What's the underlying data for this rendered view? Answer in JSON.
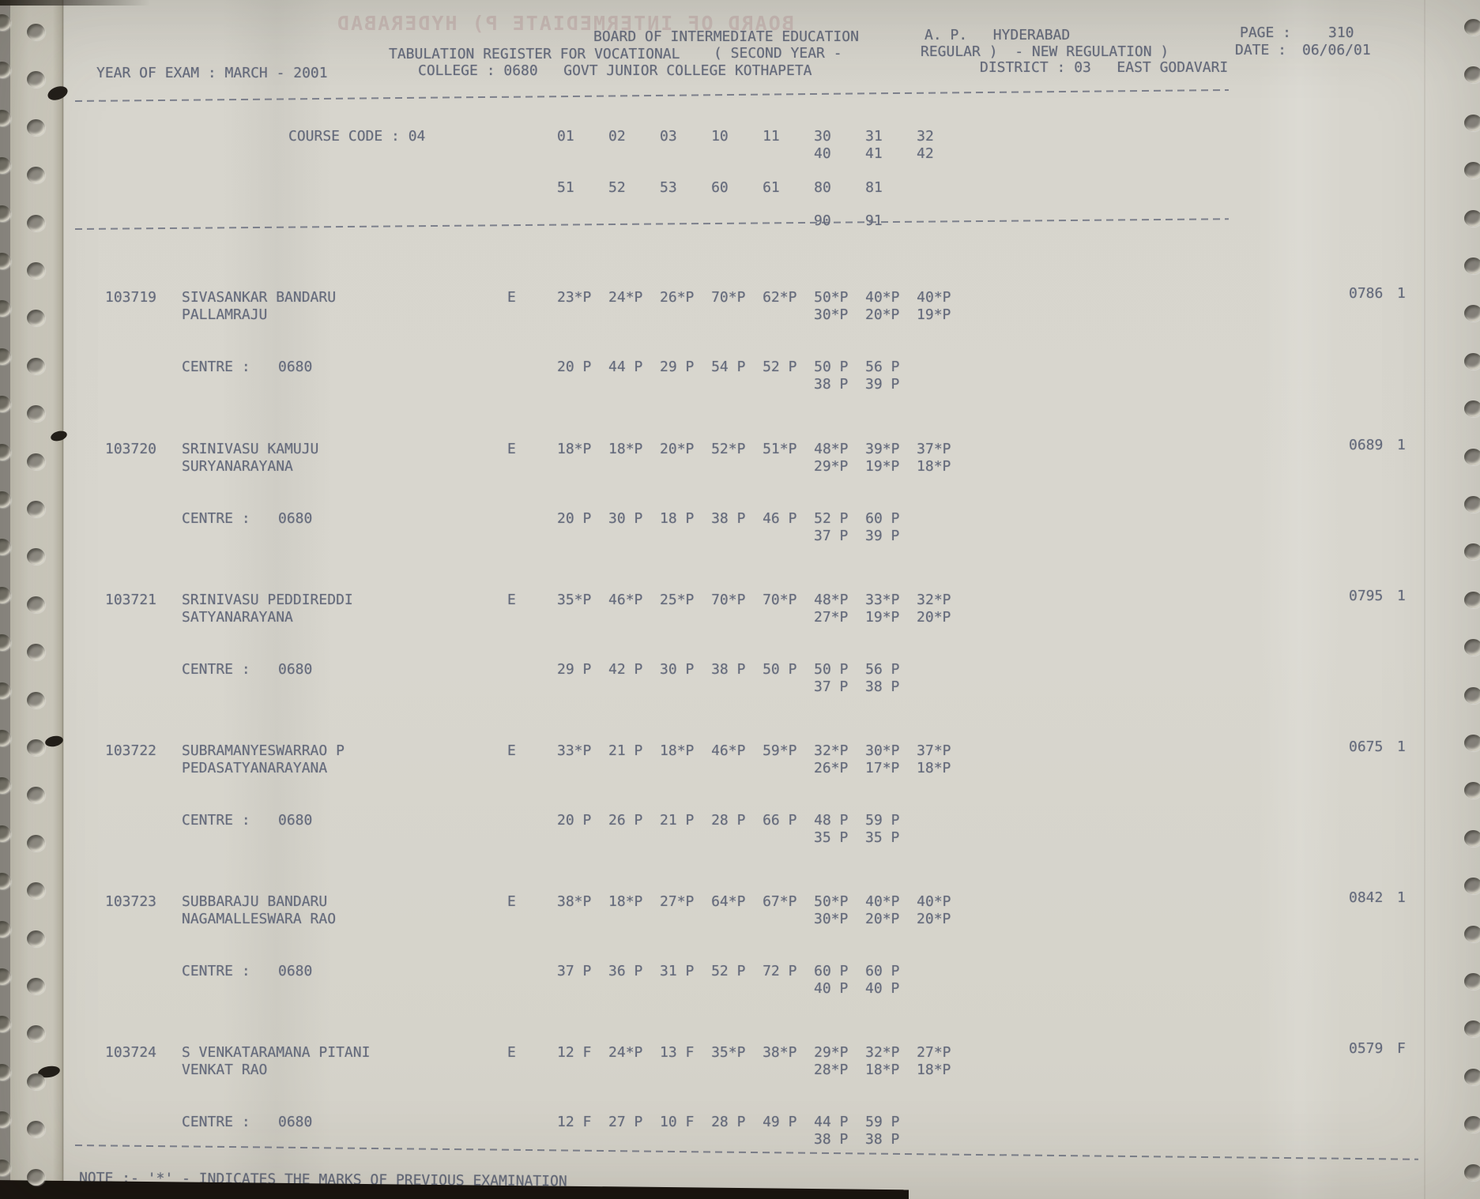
{
  "ghost_text": "BOARD OF INTERMEDIATE P) HYDERABAD",
  "header": {
    "org_name": "BOARD OF INTERMEDIATE EDUCATION",
    "org_place": "A. P.   HYDERABAD",
    "page_label": "PAGE :",
    "page_number": "310",
    "register_title": "TABULATION REGISTER FOR VOCATIONAL",
    "register_year": "( SECOND YEAR -",
    "register_type": "REGULAR )  - NEW REGULATION )",
    "date_label": "DATE :",
    "date_value": "06/06/01",
    "year_of_exam": "YEAR OF EXAM : MARCH - 2001",
    "college_line": "COLLEGE : 0680   GOVT JUNIOR COLLEGE KOTHAPETA",
    "district_line": "DISTRICT : 03   EAST GODAVARI"
  },
  "course": {
    "label": "COURSE CODE : 04",
    "codes_row1": [
      "01",
      "02",
      "03",
      "10",
      "11",
      "30",
      "31",
      "32"
    ],
    "codes_row2": [
      "40",
      "41",
      "42"
    ],
    "codes_row3": [
      "51",
      "52",
      "53",
      "60",
      "61",
      "80",
      "81"
    ],
    "codes_row4": [
      "90",
      "91"
    ]
  },
  "students": [
    {
      "regno": "103719",
      "name_line1": "SIVASANKAR BANDARU",
      "name_line2": "PALLAMRAJU",
      "medium": "E",
      "marks_row1": [
        "23*P",
        "24*P",
        "26*P",
        "70*P",
        "62*P",
        "50*P",
        "40*P",
        "40*P"
      ],
      "marks_row2": [
        "30*P",
        "20*P",
        "19*P"
      ],
      "centre_label": "CENTRE :",
      "centre_value": "0680",
      "centre_marks_row1": [
        "20 P",
        "44 P",
        "29 P",
        "54 P",
        "52 P",
        "50 P",
        "56 P"
      ],
      "centre_marks_row2": [
        "38 P",
        "39 P"
      ],
      "total": "0786",
      "result": "1"
    },
    {
      "regno": "103720",
      "name_line1": "SRINIVASU KAMUJU",
      "name_line2": "SURYANARAYANA",
      "medium": "E",
      "marks_row1": [
        "18*P",
        "18*P",
        "20*P",
        "52*P",
        "51*P",
        "48*P",
        "39*P",
        "37*P"
      ],
      "marks_row2": [
        "29*P",
        "19*P",
        "18*P"
      ],
      "centre_label": "CENTRE :",
      "centre_value": "0680",
      "centre_marks_row1": [
        "20 P",
        "30 P",
        "18 P",
        "38 P",
        "46 P",
        "52 P",
        "60 P"
      ],
      "centre_marks_row2": [
        "37 P",
        "39 P"
      ],
      "total": "0689",
      "result": "1"
    },
    {
      "regno": "103721",
      "name_line1": "SRINIVASU PEDDIREDDI",
      "name_line2": "SATYANARAYANA",
      "medium": "E",
      "marks_row1": [
        "35*P",
        "46*P",
        "25*P",
        "70*P",
        "70*P",
        "48*P",
        "33*P",
        "32*P"
      ],
      "marks_row2": [
        "27*P",
        "19*P",
        "20*P"
      ],
      "centre_label": "CENTRE :",
      "centre_value": "0680",
      "centre_marks_row1": [
        "29 P",
        "42 P",
        "30 P",
        "38 P",
        "50 P",
        "50 P",
        "56 P"
      ],
      "centre_marks_row2": [
        "37 P",
        "38 P"
      ],
      "total": "0795",
      "result": "1"
    },
    {
      "regno": "103722",
      "name_line1": "SUBRAMANYESWARRAO P",
      "name_line2": "PEDASATYANARAYANA",
      "medium": "E",
      "marks_row1": [
        "33*P",
        "21 P",
        "18*P",
        "46*P",
        "59*P",
        "32*P",
        "30*P",
        "37*P"
      ],
      "marks_row2": [
        "26*P",
        "17*P",
        "18*P"
      ],
      "centre_label": "CENTRE :",
      "centre_value": "0680",
      "centre_marks_row1": [
        "20 P",
        "26 P",
        "21 P",
        "28 P",
        "66 P",
        "48 P",
        "59 P"
      ],
      "centre_marks_row2": [
        "35 P",
        "35 P"
      ],
      "total": "0675",
      "result": "1"
    },
    {
      "regno": "103723",
      "name_line1": "SUBBARAJU BANDARU",
      "name_line2": "NAGAMALLESWARA RAO",
      "medium": "E",
      "marks_row1": [
        "38*P",
        "18*P",
        "27*P",
        "64*P",
        "67*P",
        "50*P",
        "40*P",
        "40*P"
      ],
      "marks_row2": [
        "30*P",
        "20*P",
        "20*P"
      ],
      "centre_label": "CENTRE :",
      "centre_value": "0680",
      "centre_marks_row1": [
        "37 P",
        "36 P",
        "31 P",
        "52 P",
        "72 P",
        "60 P",
        "60 P"
      ],
      "centre_marks_row2": [
        "40 P",
        "40 P"
      ],
      "total": "0842",
      "result": "1"
    },
    {
      "regno": "103724",
      "name_line1": "S VENKATARAMANA PITANI",
      "name_line2": "VENKAT RAO",
      "medium": "E",
      "marks_row1": [
        "12 F",
        "24*P",
        "13 F",
        "35*P",
        "38*P",
        "29*P",
        "32*P",
        "27*P"
      ],
      "marks_row2": [
        "28*P",
        "18*P",
        "18*P"
      ],
      "centre_label": "CENTRE :",
      "centre_value": "0680",
      "centre_marks_row1": [
        "12 F",
        "27 P",
        "10 F",
        "28 P",
        "49 P",
        "44 P",
        "59 P"
      ],
      "centre_marks_row2": [
        "38 P",
        "38 P"
      ],
      "total": "0579",
      "result": "F"
    }
  ],
  "footer": {
    "note": "NOTE :- '*' - INDICATES THE MARKS OF PREVIOUS EXAMINATION"
  }
}
